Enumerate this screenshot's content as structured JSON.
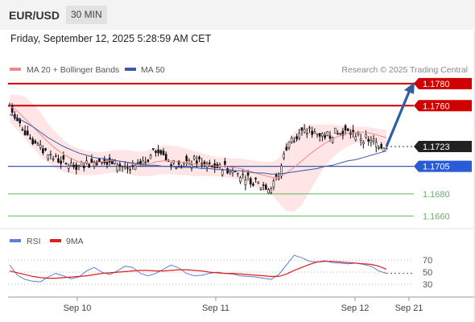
{
  "header": {
    "pair": "EUR/USD",
    "timeframe": "30 MIN",
    "timestamp": "Friday, September 12, 2025 5:28:59 AM CET"
  },
  "legend": {
    "ma20_label": "MA 20 + Bollinger Bands",
    "ma50_label": "MA 50",
    "credit": "Research © 2025 Trading Central",
    "rsi_label": "RSI",
    "rsi9_label": "9MA"
  },
  "colors": {
    "ma20": "#f08a8a",
    "bollinger_fill": "#ffe0e0",
    "ma50": "#3d59a8",
    "resistance": "#d10000",
    "support": "#5cb85c",
    "arrow": "#2f5f9e",
    "rsi": "#5b7fd4",
    "rsi9": "#e21d1d",
    "candle_up": "#111111",
    "candle_down": "#111111"
  },
  "chart_data": {
    "type": "candlestick",
    "symbol": "EUR/USD",
    "interval": "30 MIN",
    "x_tick_labels": [
      "Sep 10",
      "Sep 11",
      "Sep 12",
      "Sep 21"
    ],
    "y_range": [
      1.165,
      1.1785
    ],
    "current_price": "1.1723",
    "levels": [
      {
        "value": 1.178,
        "label": "1.1780",
        "kind": "resistance"
      },
      {
        "value": 1.176,
        "label": "1.1760",
        "kind": "resistance"
      },
      {
        "value": 1.1723,
        "label": "1.1723",
        "kind": "current"
      },
      {
        "value": 1.1705,
        "label": "1.1705",
        "kind": "pivot"
      },
      {
        "value": 1.168,
        "label": "1.1680",
        "kind": "support"
      },
      {
        "value": 1.166,
        "label": "1.1660",
        "kind": "support"
      }
    ],
    "forecast_target": 1.178,
    "price_path": [
      1.176,
      1.1748,
      1.1737,
      1.1728,
      1.1721,
      1.1716,
      1.1712,
      1.1708,
      1.1706,
      1.1705,
      1.1707,
      1.1709,
      1.1712,
      1.171,
      1.1707,
      1.1704,
      1.1702,
      1.1705,
      1.1712,
      1.172,
      1.1716,
      1.1708,
      1.1705,
      1.1707,
      1.171,
      1.1709,
      1.1706,
      1.1704,
      1.1703,
      1.1701,
      1.1698,
      1.1694,
      1.169,
      1.1688,
      1.1686,
      1.1696,
      1.1722,
      1.1732,
      1.1736,
      1.1737,
      1.1735,
      1.1733,
      1.1735,
      1.1737,
      1.1736,
      1.1734,
      1.1731,
      1.1728,
      1.1725,
      1.1723
    ],
    "ma20": [
      1.176,
      1.1755,
      1.1748,
      1.1741,
      1.1734,
      1.1727,
      1.1721,
      1.1716,
      1.1712,
      1.1709,
      1.1708,
      1.1708,
      1.1709,
      1.171,
      1.171,
      1.1709,
      1.1707,
      1.1706,
      1.1707,
      1.1709,
      1.171,
      1.171,
      1.1709,
      1.1708,
      1.1707,
      1.1707,
      1.1706,
      1.1705,
      1.1705,
      1.1704,
      1.1703,
      1.1701,
      1.1699,
      1.1697,
      1.1695,
      1.1695,
      1.1699,
      1.1704,
      1.171,
      1.1716,
      1.1721,
      1.1726,
      1.173,
      1.1733,
      1.1735,
      1.1736,
      1.1736,
      1.1735,
      1.1733,
      1.1731
    ],
    "bb_upper": [
      1.177,
      1.177,
      1.1768,
      1.1762,
      1.1754,
      1.1744,
      1.1736,
      1.1729,
      1.1724,
      1.1721,
      1.1719,
      1.1718,
      1.1718,
      1.1719,
      1.172,
      1.172,
      1.1719,
      1.1718,
      1.1719,
      1.1722,
      1.1724,
      1.1724,
      1.1723,
      1.1721,
      1.1719,
      1.1717,
      1.1715,
      1.1713,
      1.1713,
      1.1712,
      1.1712,
      1.1711,
      1.171,
      1.1709,
      1.1709,
      1.1712,
      1.1727,
      1.1736,
      1.1741,
      1.1743,
      1.1743,
      1.1743,
      1.1743,
      1.1742,
      1.1741,
      1.1741,
      1.1741,
      1.174,
      1.1739,
      1.1738
    ],
    "bb_lower": [
      1.1745,
      1.1738,
      1.173,
      1.1722,
      1.1714,
      1.1708,
      1.1703,
      1.17,
      1.1698,
      1.1697,
      1.1697,
      1.1697,
      1.1698,
      1.1699,
      1.17,
      1.1699,
      1.1697,
      1.1696,
      1.1696,
      1.1697,
      1.1698,
      1.1698,
      1.1697,
      1.1697,
      1.1696,
      1.1696,
      1.1696,
      1.1696,
      1.1695,
      1.1694,
      1.1692,
      1.1689,
      1.1686,
      1.1683,
      1.168,
      1.1672,
      1.1664,
      1.1664,
      1.167,
      1.1682,
      1.1694,
      1.1705,
      1.1713,
      1.1719,
      1.1723,
      1.1726,
      1.1727,
      1.1727,
      1.1726,
      1.1724
    ],
    "ma50": [
      1.1752,
      1.1749,
      1.1745,
      1.1741,
      1.1736,
      1.1731,
      1.1727,
      1.1723,
      1.172,
      1.1717,
      1.1715,
      1.1713,
      1.1712,
      1.1711,
      1.171,
      1.1709,
      1.1708,
      1.1707,
      1.1706,
      1.1706,
      1.1705,
      1.1705,
      1.1704,
      1.1704,
      1.1704,
      1.1703,
      1.1703,
      1.1702,
      1.1702,
      1.1701,
      1.1701,
      1.17,
      1.1699,
      1.1699,
      1.1698,
      1.1698,
      1.1699,
      1.17,
      1.1701,
      1.1702,
      1.1703,
      1.1705,
      1.1706,
      1.1708,
      1.171,
      1.1711,
      1.1713,
      1.1715,
      1.1717,
      1.1719
    ],
    "rsi": {
      "range": [
        10,
        85
      ],
      "ticks": [
        70,
        50,
        30
      ],
      "rsi": [
        62,
        45,
        38,
        35,
        34,
        42,
        48,
        44,
        39,
        42,
        52,
        58,
        50,
        46,
        52,
        60,
        58,
        48,
        44,
        48,
        55,
        62,
        57,
        48,
        44,
        45,
        48,
        50,
        48,
        47,
        44,
        43,
        42,
        40,
        38,
        46,
        62,
        78,
        74,
        68,
        67,
        69,
        66,
        65,
        64,
        65,
        63,
        60,
        52,
        48
      ],
      "rsi9": [
        52,
        49,
        46,
        43,
        41,
        40,
        40,
        41,
        42,
        43,
        44,
        46,
        48,
        49,
        50,
        51,
        52,
        53,
        53,
        52,
        52,
        53,
        54,
        54,
        53,
        52,
        50,
        49,
        48,
        48,
        47,
        46,
        45,
        44,
        43,
        43,
        47,
        53,
        58,
        63,
        67,
        68,
        68,
        67,
        66,
        65,
        64,
        63,
        60,
        55
      ]
    }
  }
}
